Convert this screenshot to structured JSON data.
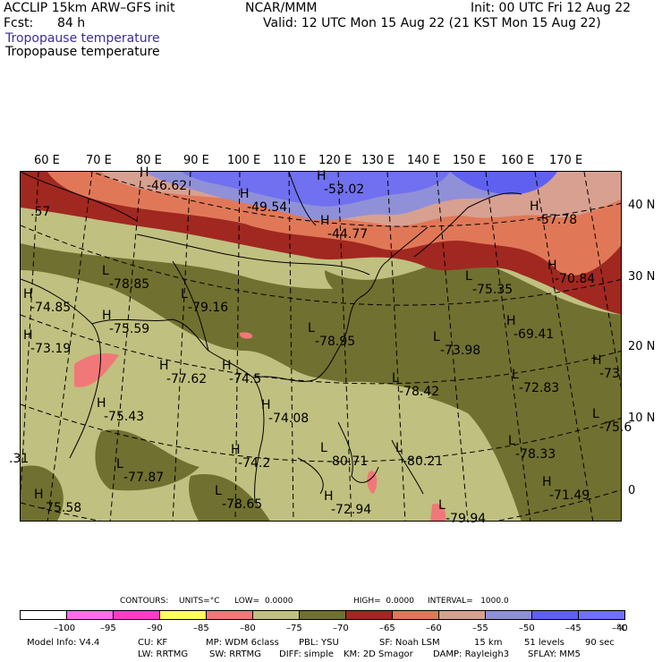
{
  "header": {
    "model": "ACCLIP 15km ARW–GFS init",
    "center": "NCAR/MMM",
    "init": "Init: 00 UTC Fri 12 Aug 22",
    "fcst_label": "Fcst:",
    "fcst_value": "84 h",
    "valid": "Valid: 12 UTC Mon 15 Aug 22 (21 KST Mon 15 Aug 22)",
    "field_title_1": "Tropopause temperature",
    "field_title_2": "Tropopause temperature"
  },
  "map": {
    "lon_labels": [
      "60 E",
      "70 E",
      "80 E",
      "90 E",
      "100 E",
      "110 E",
      "120 E",
      "130 E",
      "140 E",
      "150 E",
      "160 E",
      "170 E"
    ],
    "lat_labels": [
      "40 N",
      "30 N",
      "20 N",
      "10 N",
      "0"
    ],
    "centers": [
      {
        "type": "H",
        "value": "-46.62"
      },
      {
        "type": "H",
        "value": "-49.54"
      },
      {
        "type": "H",
        "value": "-53.02"
      },
      {
        "type": "H",
        "value": "-44.77"
      },
      {
        "type": "H",
        "value": "-57.78"
      },
      {
        "type": "",
        "value": ".57"
      },
      {
        "type": "L",
        "value": "-78.85"
      },
      {
        "type": "L",
        "value": "-79.16"
      },
      {
        "type": "H",
        "value": "-74.85"
      },
      {
        "type": "H",
        "value": "-75.59"
      },
      {
        "type": "H",
        "value": "-73.19"
      },
      {
        "type": "H",
        "value": "-77.62"
      },
      {
        "type": "H",
        "value": "-74.5"
      },
      {
        "type": "L",
        "value": "-78.95"
      },
      {
        "type": "L",
        "value": "-75.35"
      },
      {
        "type": "H",
        "value": "-70.84"
      },
      {
        "type": "H",
        "value": "-69.41"
      },
      {
        "type": "L",
        "value": "-73.98"
      },
      {
        "type": "L",
        "value": "-78.42"
      },
      {
        "type": "L",
        "value": "-72.83"
      },
      {
        "type": "H",
        "value": "-73"
      },
      {
        "type": "H",
        "value": "-75.43"
      },
      {
        "type": "H",
        "value": "-74.08"
      },
      {
        "type": "L",
        "value": "-75.6"
      },
      {
        "type": "H",
        "value": "-74.2"
      },
      {
        "type": "L",
        "value": "-80.71"
      },
      {
        "type": "L",
        "value": "-80.21"
      },
      {
        "type": "L",
        "value": "-78.33"
      },
      {
        "type": "H",
        "value": "-71.49"
      },
      {
        "type": "L",
        "value": "-77.87"
      },
      {
        "type": "",
        "value": ".31"
      },
      {
        "type": "H",
        "value": "-75.58"
      },
      {
        "type": "L",
        "value": "-78.65"
      },
      {
        "type": "H",
        "value": "-72.94"
      },
      {
        "type": "L",
        "value": "-79.94"
      }
    ]
  },
  "contours": {
    "label": "CONTOURS:",
    "units": "UNITS=°C",
    "low": "LOW=  0.0000",
    "high": "HIGH=  0.0000",
    "interval": "INTERVAL=   1000.0"
  },
  "colorbar": {
    "colors": [
      "#ffffff",
      "#ff6cf0",
      "#ff3cc8",
      "#ffff60",
      "#f07878",
      "#c0c080",
      "#707030",
      "#a02820",
      "#e07858",
      "#d8a090",
      "#9090d8",
      "#6060f0",
      "#7070f8"
    ],
    "ticks": [
      "–100",
      "–95",
      "–90",
      "–85",
      "–80",
      "–75",
      "–70",
      "–65",
      "–60",
      "–55",
      "–50",
      "–45",
      "–40"
    ],
    "unit": "°C"
  },
  "footer": {
    "line1_a": "Model Info: V4.4",
    "line1_b": "CU: KF",
    "line1_c": "MP: WDM 6class",
    "line1_d": "PBL: YSU",
    "line1_e": "SF: Noah LSM",
    "line1_f": "15 km",
    "line1_g": "51 levels",
    "line1_h": "90 sec",
    "line2_a": "LW: RRTMG",
    "line2_b": "SW: RRTMG",
    "line2_c": "DIFF: simple",
    "line2_d": "KM: 2D Smagor",
    "line2_e": "DAMP: Rayleigh3",
    "line2_f": "SFLAY: MM5"
  },
  "colors": {
    "band_lightolive": "#c0c080",
    "band_darkolive": "#707030",
    "band_red": "#a02820",
    "band_salmon": "#e07858",
    "band_pink": "#d8a090",
    "band_lavender": "#9090d8",
    "band_blue": "#6060f0",
    "band_hotpink": "#f07878"
  }
}
